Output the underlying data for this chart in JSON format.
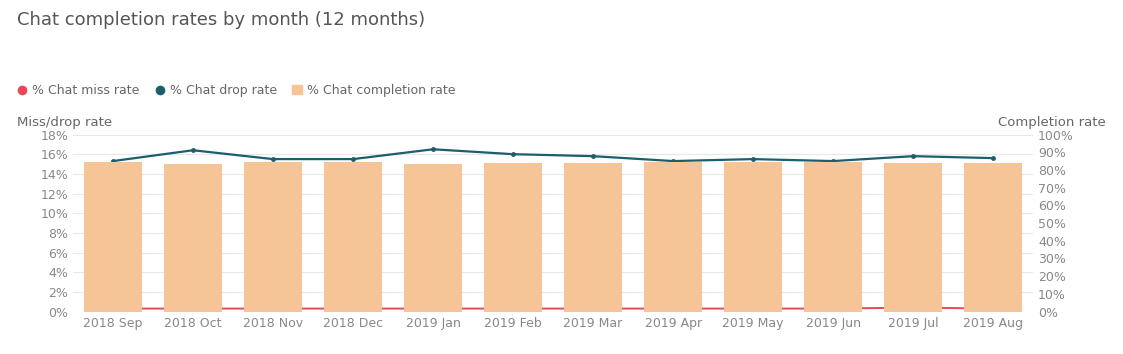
{
  "title": "Chat completion rates by month (12 months)",
  "months": [
    "2018 Sep",
    "2018 Oct",
    "2018 Nov",
    "2018 Dec",
    "2019 Jan",
    "2019 Feb",
    "2019 Mar",
    "2019 Apr",
    "2019 May",
    "2019 Jun",
    "2019 Jul",
    "2019 Aug"
  ],
  "chat_miss_rate": [
    0.003,
    0.003,
    0.003,
    0.003,
    0.003,
    0.003,
    0.003,
    0.003,
    0.003,
    0.003,
    0.004,
    0.003
  ],
  "chat_drop_rate": [
    0.153,
    0.164,
    0.155,
    0.155,
    0.165,
    0.16,
    0.158,
    0.153,
    0.155,
    0.153,
    0.158,
    0.156
  ],
  "chat_completion_rate": [
    0.844,
    0.833,
    0.842,
    0.842,
    0.832,
    0.837,
    0.839,
    0.844,
    0.842,
    0.844,
    0.838,
    0.841
  ],
  "bar_color": "#F5C497",
  "drop_line_color": "#1B5E6E",
  "miss_line_color": "#E84855",
  "background_color": "#FFFFFF",
  "left_ylabel": "Miss/drop rate",
  "right_ylabel": "Completion rate",
  "left_ylim": [
    0,
    0.18
  ],
  "right_ylim": [
    0,
    1.0
  ],
  "left_yticks": [
    0,
    0.02,
    0.04,
    0.06,
    0.08,
    0.1,
    0.12,
    0.14,
    0.16,
    0.18
  ],
  "right_yticks": [
    0,
    0.1,
    0.2,
    0.3,
    0.4,
    0.5,
    0.6,
    0.7,
    0.8,
    0.9,
    1.0
  ],
  "legend_miss_label": "% Chat miss rate",
  "legend_drop_label": "% Chat drop rate",
  "legend_completion_label": "% Chat completion rate",
  "title_fontsize": 13,
  "axis_label_fontsize": 9.5,
  "tick_fontsize": 9,
  "legend_fontsize": 9,
  "title_color": "#555555",
  "tick_color": "#888888",
  "label_color": "#666666",
  "grid_color": "#e8e8e8"
}
